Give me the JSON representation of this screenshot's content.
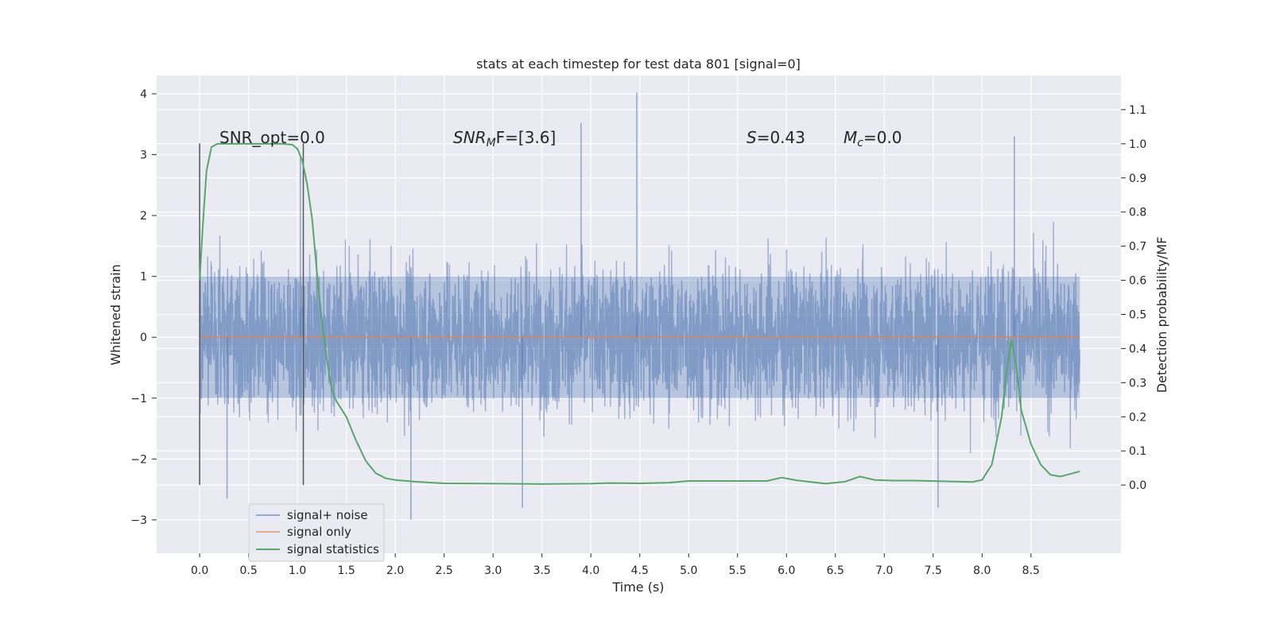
{
  "chart_data": {
    "type": "line",
    "title": "stats at each timestep for test data 801 [signal=0]",
    "xlabel": "Time (s)",
    "ylabel": "Whitened strain",
    "ylabel_right": "Detection probability/MF",
    "xlim": [
      -0.44,
      9.42
    ],
    "ylim": [
      -3.55,
      4.3
    ],
    "ylim_right": [
      -0.2,
      1.2
    ],
    "x_ticks": [
      "0.0",
      "0.5",
      "1.0",
      "1.5",
      "2.0",
      "2.5",
      "3.0",
      "3.5",
      "4.0",
      "4.5",
      "5.0",
      "5.5",
      "6.0",
      "6.5",
      "7.0",
      "7.5",
      "8.0",
      "8.5"
    ],
    "y_ticks_left": [
      "4",
      "3",
      "2",
      "1",
      "0",
      "−1",
      "−2",
      "−3"
    ],
    "y_ticks_right": [
      "1.1",
      "1.0",
      "0.9",
      "0.8",
      "0.7",
      "0.6",
      "0.5",
      "0.4",
      "0.3",
      "0.2",
      "0.1",
      "0.0"
    ],
    "grid": true,
    "annotations": {
      "snr_opt": "SNR_opt=0.0",
      "snr_mf_base": "SNR",
      "snr_mf_sub": "M",
      "snr_mf_rest": "F=[3.6]",
      "s_label": "S",
      "s_value": "=0.43",
      "mc_base": "M",
      "mc_sub": "c",
      "mc_value": "=0.0"
    },
    "vlines_x": [
      0.0,
      1.06
    ],
    "noise_envelope": {
      "x_range": [
        0.0,
        9.0
      ],
      "core_range": [
        -1.0,
        1.0
      ],
      "typical_peak_range": [
        -2.2,
        2.3
      ],
      "extreme_spikes": [
        {
          "x": 4.47,
          "y": 4.02
        },
        {
          "x": 3.9,
          "y": 3.52
        },
        {
          "x": 8.33,
          "y": 3.3
        },
        {
          "x": 1.03,
          "y": 2.95
        },
        {
          "x": 2.16,
          "y": -3.0
        },
        {
          "x": 3.3,
          "y": -2.8
        },
        {
          "x": 7.55,
          "y": -2.8
        },
        {
          "x": 0.28,
          "y": -2.65
        }
      ]
    },
    "series": [
      {
        "name": "signal+ noise",
        "color": "#4c72b0",
        "style": "dense noise band"
      },
      {
        "name": "signal only",
        "color": "#dd8452",
        "x": [
          0.0,
          9.0
        ],
        "y": [
          0.0,
          0.0
        ]
      },
      {
        "name": "signal statistics",
        "color": "#55a868",
        "axis": "right",
        "x": [
          0.0,
          0.03,
          0.07,
          0.12,
          0.18,
          0.3,
          0.5,
          0.7,
          0.85,
          0.95,
          1.0,
          1.05,
          1.1,
          1.15,
          1.2,
          1.25,
          1.3,
          1.35,
          1.4,
          1.5,
          1.6,
          1.7,
          1.8,
          1.9,
          2.0,
          2.2,
          2.5,
          3.0,
          3.5,
          4.0,
          4.2,
          4.5,
          4.8,
          5.0,
          5.3,
          5.6,
          5.8,
          5.95,
          6.1,
          6.4,
          6.6,
          6.75,
          6.9,
          7.1,
          7.3,
          7.6,
          7.9,
          8.0,
          8.1,
          8.2,
          8.25,
          8.3,
          8.35,
          8.4,
          8.5,
          8.6,
          8.7,
          8.8,
          9.0
        ],
        "y": [
          0.6,
          0.75,
          0.92,
          0.99,
          1.0,
          1.0,
          1.0,
          1.0,
          1.0,
          0.997,
          0.985,
          0.95,
          0.88,
          0.78,
          0.62,
          0.48,
          0.37,
          0.28,
          0.245,
          0.2,
          0.13,
          0.07,
          0.035,
          0.02,
          0.015,
          0.01,
          0.005,
          0.004,
          0.003,
          0.004,
          0.006,
          0.005,
          0.007,
          0.012,
          0.012,
          0.012,
          0.012,
          0.022,
          0.014,
          0.004,
          0.01,
          0.025,
          0.015,
          0.013,
          0.013,
          0.011,
          0.009,
          0.015,
          0.06,
          0.2,
          0.33,
          0.425,
          0.35,
          0.22,
          0.12,
          0.06,
          0.03,
          0.025,
          0.04
        ]
      }
    ],
    "legend": {
      "placement": "lower-left",
      "entries": [
        "signal+ noise",
        "signal only",
        "signal statistics"
      ]
    },
    "colors": {
      "plot_bg": "#eaeaf2",
      "grid": "#ffffff",
      "noise": "#4c72b0",
      "signal": "#dd8452",
      "stats": "#55a868",
      "vline": "#555555"
    }
  }
}
